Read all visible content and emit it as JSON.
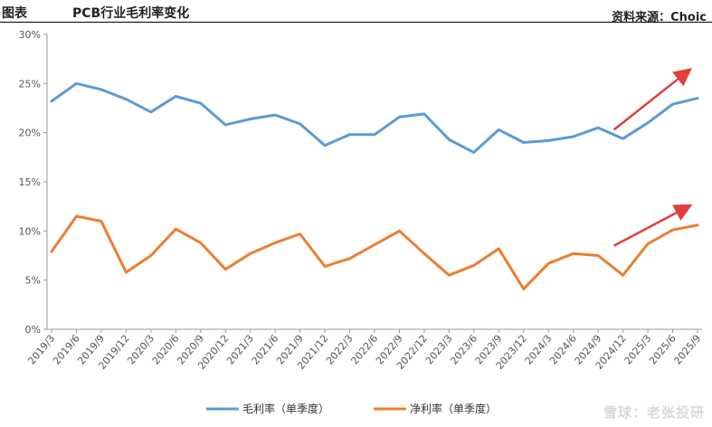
{
  "header": {
    "figure_tag": "图表",
    "title": "PCB行业毛利率变化",
    "source": "资料来源：Choic"
  },
  "watermark": "雪球：老张投研",
  "chart_data": {
    "type": "line",
    "categories": [
      "2019/3",
      "2019/6",
      "2019/9",
      "2019/12",
      "2020/3",
      "2020/6",
      "2020/9",
      "2020/12",
      "2021/3",
      "2021/6",
      "2021/9",
      "2021/12",
      "2022/3",
      "2022/6",
      "2022/9",
      "2022/12",
      "2023/3",
      "2023/6",
      "2023/9",
      "2023/12",
      "2024/3",
      "2024/6",
      "2024/9",
      "2024/12",
      "2025/3",
      "2025/6",
      "2025/9"
    ],
    "series": [
      {
        "name": "毛利率（单季度）",
        "color": "#5b9bd5",
        "values": [
          23.2,
          25.0,
          24.4,
          23.4,
          22.1,
          23.7,
          23.0,
          20.8,
          21.4,
          21.8,
          20.9,
          18.7,
          19.8,
          19.8,
          21.6,
          21.9,
          19.3,
          18.0,
          20.3,
          19.0,
          19.2,
          19.6,
          20.5,
          19.4,
          21.0,
          22.9,
          23.5
        ]
      },
      {
        "name": "净利率（单季度）",
        "color": "#ed7d31",
        "values": [
          7.9,
          11.5,
          11.0,
          5.8,
          7.5,
          10.2,
          8.8,
          6.1,
          7.7,
          8.8,
          9.7,
          6.4,
          7.2,
          8.6,
          10.0,
          7.7,
          5.5,
          6.5,
          8.2,
          4.1,
          6.7,
          7.7,
          7.5,
          5.5,
          8.7,
          10.1,
          10.6
        ]
      }
    ],
    "y_ticks": [
      "0%",
      "5%",
      "10%",
      "15%",
      "20%",
      "25%",
      "30%"
    ],
    "ylim": [
      0,
      30
    ],
    "legend_position": "bottom",
    "annotations": [
      {
        "type": "arrow",
        "color": "#e0403c",
        "from": [
          "2024/12",
          20.3
        ],
        "to": [
          "2025/9",
          26.3
        ]
      },
      {
        "type": "arrow",
        "color": "#e0403c",
        "from": [
          "2024/12",
          8.5
        ],
        "to": [
          "2025/9",
          12.5
        ]
      }
    ]
  }
}
